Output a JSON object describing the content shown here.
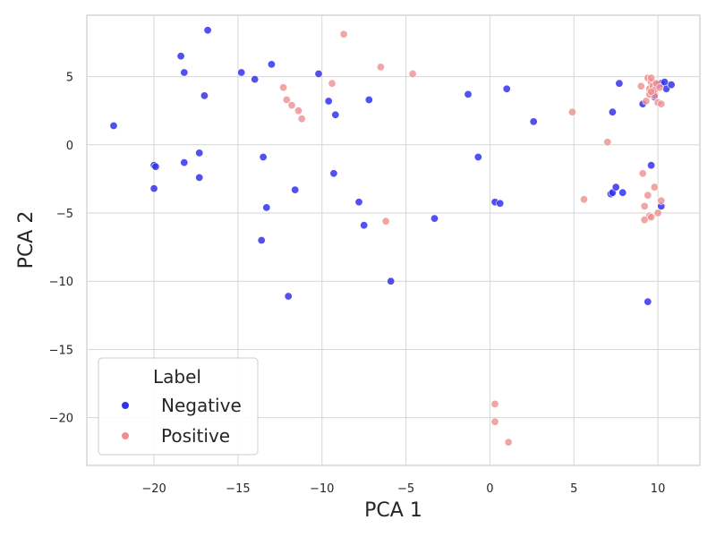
{
  "chart_data": {
    "type": "scatter",
    "title": "",
    "xlabel": "PCA 1",
    "ylabel": "PCA 2",
    "xlim": [
      -24,
      12.5
    ],
    "ylim": [
      -23.5,
      9.5
    ],
    "xticks": [
      -20,
      -15,
      -10,
      -5,
      0,
      5,
      10
    ],
    "yticks": [
      5,
      0,
      -5,
      -10,
      -15,
      -20
    ],
    "xtick_labels": [
      "−20",
      "−15",
      "−10",
      "−5",
      "0",
      "5",
      "10"
    ],
    "ytick_labels": [
      "5",
      "0",
      "−5",
      "−10",
      "−15",
      "−20"
    ],
    "grid": true,
    "legend": {
      "title": "Label",
      "position": "lower-left"
    },
    "series": [
      {
        "name": "Negative",
        "color": "#3333ee",
        "points": [
          [
            -22.4,
            1.4
          ],
          [
            -20.0,
            -1.5
          ],
          [
            -19.9,
            -1.6
          ],
          [
            -20.0,
            -3.2
          ],
          [
            -18.4,
            6.5
          ],
          [
            -18.2,
            5.3
          ],
          [
            -18.2,
            -1.3
          ],
          [
            -17.3,
            -0.6
          ],
          [
            -17.3,
            -2.4
          ],
          [
            -17.0,
            3.6
          ],
          [
            -16.8,
            8.4
          ],
          [
            -14.8,
            5.3
          ],
          [
            -14.0,
            4.8
          ],
          [
            -13.5,
            -0.9
          ],
          [
            -13.6,
            -7.0
          ],
          [
            -13.3,
            -4.6
          ],
          [
            -13.0,
            5.9
          ],
          [
            -12.0,
            -11.1
          ],
          [
            -11.6,
            -3.3
          ],
          [
            -10.2,
            5.2
          ],
          [
            -9.6,
            3.2
          ],
          [
            -9.2,
            2.2
          ],
          [
            -9.3,
            -2.1
          ],
          [
            -7.8,
            -4.2
          ],
          [
            -7.5,
            -5.9
          ],
          [
            -7.2,
            3.3
          ],
          [
            -5.9,
            -10.0
          ],
          [
            -3.3,
            -5.4
          ],
          [
            -1.3,
            3.7
          ],
          [
            -0.7,
            -0.9
          ],
          [
            0.3,
            -4.2
          ],
          [
            0.6,
            -4.3
          ],
          [
            1.0,
            4.1
          ],
          [
            2.6,
            1.7
          ],
          [
            7.3,
            2.4
          ],
          [
            7.7,
            4.5
          ],
          [
            7.2,
            -3.6
          ],
          [
            7.3,
            -3.5
          ],
          [
            7.5,
            -3.1
          ],
          [
            7.9,
            -3.5
          ],
          [
            9.1,
            3.0
          ],
          [
            9.4,
            -11.5
          ],
          [
            9.6,
            -1.5
          ],
          [
            9.7,
            3.8
          ],
          [
            10.0,
            4.4
          ],
          [
            10.2,
            4.5
          ],
          [
            10.4,
            4.6
          ],
          [
            10.5,
            4.1
          ],
          [
            10.8,
            4.4
          ],
          [
            10.2,
            -4.5
          ],
          [
            9.8,
            3.5
          ]
        ]
      },
      {
        "name": "Positive",
        "color": "#ee9090",
        "points": [
          [
            -12.3,
            4.2
          ],
          [
            -12.1,
            3.3
          ],
          [
            -11.8,
            2.9
          ],
          [
            -11.4,
            2.5
          ],
          [
            -11.2,
            1.9
          ],
          [
            -9.4,
            4.5
          ],
          [
            -8.7,
            8.1
          ],
          [
            -6.5,
            5.7
          ],
          [
            -6.2,
            -5.6
          ],
          [
            -4.6,
            5.2
          ],
          [
            0.3,
            -19.0
          ],
          [
            0.3,
            -20.3
          ],
          [
            1.1,
            -21.8
          ],
          [
            4.9,
            2.4
          ],
          [
            5.6,
            -4.0
          ],
          [
            7.0,
            0.2
          ],
          [
            9.0,
            4.3
          ],
          [
            9.1,
            -2.1
          ],
          [
            9.3,
            3.2
          ],
          [
            9.4,
            4.9
          ],
          [
            9.5,
            4.1
          ],
          [
            9.5,
            3.7
          ],
          [
            9.6,
            4.6
          ],
          [
            9.7,
            4.3
          ],
          [
            9.8,
            4.0
          ],
          [
            9.8,
            3.6
          ],
          [
            9.9,
            4.5
          ],
          [
            10.0,
            3.1
          ],
          [
            10.1,
            4.2
          ],
          [
            10.2,
            3.0
          ],
          [
            9.6,
            4.9
          ],
          [
            9.8,
            -3.1
          ],
          [
            9.4,
            -3.7
          ],
          [
            9.2,
            -4.5
          ],
          [
            9.5,
            -5.2
          ],
          [
            9.2,
            -5.5
          ],
          [
            9.6,
            -5.3
          ],
          [
            10.0,
            -5.0
          ],
          [
            10.2,
            -4.1
          ],
          [
            9.6,
            3.9
          ]
        ]
      }
    ]
  }
}
